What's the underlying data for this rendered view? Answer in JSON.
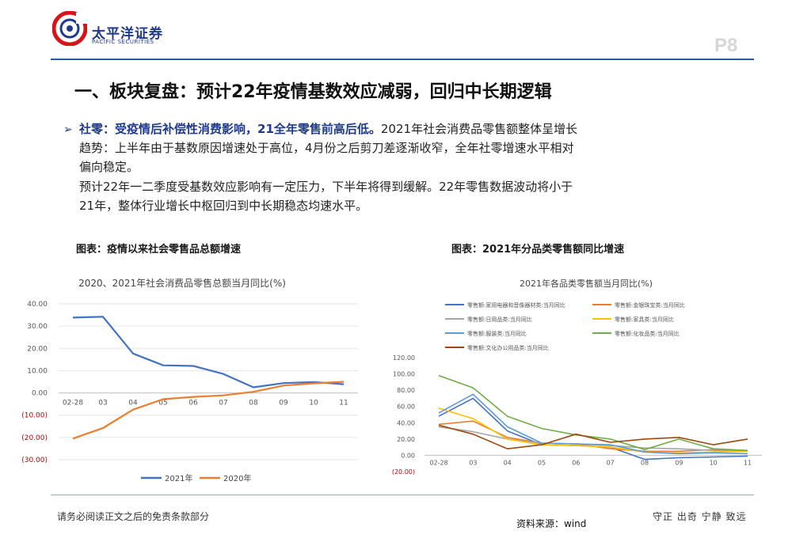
{
  "header": {
    "brand_cn": "太平洋证券",
    "brand_en": "PACIFIC SECURITIES",
    "page_number": "P8",
    "logo_color": "#d7141a",
    "accent_color": "#1f3a8c"
  },
  "title": "一、板块复盘：预计22年疫情基数效应减弱，回归中长期逻辑",
  "body": {
    "bullet": "➢",
    "highlight": "社零：受疫情后补偿性消费影响，21全年零售前高后低。",
    "line1_rest": "2021年社会消费品零售额整体呈增长",
    "line2": "趋势：上半年由于基数原因增速处于高位，4月份之后剪刀差逐渐收窄，全年社零增速水平相对",
    "line3": "偏向稳定。",
    "line4": "预计22年一二季度受基数效应影响有一定压力，下半年将得到缓解。22年零售数据波动将小于",
    "line5": "21年，整体行业增长中枢回归到中长期稳态均速水平。"
  },
  "captions": {
    "left": "图表：疫情以来社会零售品总额增速",
    "right": "图表：2021年分品类零售额同比增速"
  },
  "chart_data": [
    {
      "type": "line",
      "title": "2020、2021年社会消费品零售总额当月同比(%)",
      "categories": [
        "02-28",
        "03",
        "04",
        "05",
        "06",
        "07",
        "08",
        "09",
        "10",
        "11"
      ],
      "yticks": [
        "40.00",
        "30.00",
        "20.00",
        "10.00",
        "0.00",
        "(10.00)",
        "(20.00)",
        "(30.00)"
      ],
      "ylim": [
        -30,
        40
      ],
      "negative_tick_color": "#c00000",
      "series": [
        {
          "name": "2021年",
          "color": "#4472c4",
          "values": [
            33.8,
            34.2,
            17.7,
            12.4,
            12.1,
            8.5,
            2.5,
            4.4,
            4.9,
            3.9
          ]
        },
        {
          "name": "2020年",
          "color": "#ed7d31",
          "values": [
            -20.5,
            -15.8,
            -7.5,
            -2.8,
            -1.8,
            -1.1,
            0.5,
            3.3,
            4.3,
            5.0
          ]
        }
      ]
    },
    {
      "type": "line",
      "title": "2021年各品类零售额当月同比(%)",
      "categories": [
        "02-28",
        "03",
        "04",
        "05",
        "06",
        "07",
        "08",
        "09",
        "10",
        "11"
      ],
      "yticks": [
        "120.00",
        "100.00",
        "80.00",
        "60.00",
        "40.00",
        "20.00",
        "0.00",
        "(20.00)"
      ],
      "ylim": [
        -20,
        120
      ],
      "series": [
        {
          "name": "零售额:家用电器和音像器材类:当月同比",
          "color": "#4472c4",
          "values": [
            48,
            70,
            30,
            13,
            12,
            10,
            -5,
            -3,
            -2,
            -1
          ]
        },
        {
          "name": "零售额:金银珠宝类:当月同比",
          "color": "#ed7d31",
          "values": [
            38,
            42,
            22,
            15,
            14,
            8,
            5,
            5,
            7,
            6
          ]
        },
        {
          "name": "零售额:日用品类:当月同比",
          "color": "#a5a5a5",
          "values": [
            35,
            29,
            20,
            15,
            14,
            12,
            9,
            8,
            6,
            5
          ]
        },
        {
          "name": "零售额:家具类:当月同比",
          "color": "#ffc000",
          "values": [
            58,
            45,
            20,
            13,
            12,
            10,
            4,
            3,
            4,
            5
          ]
        },
        {
          "name": "零售额:服装类:当月同比",
          "color": "#5b9bd5",
          "values": [
            52,
            75,
            35,
            15,
            14,
            13,
            4,
            2,
            3,
            2
          ]
        },
        {
          "name": "零售额:化妆品类:当月同比",
          "color": "#70ad47",
          "values": [
            98,
            83,
            48,
            33,
            25,
            20,
            7,
            20,
            8,
            6
          ]
        },
        {
          "name": "零售额:文化办公用品类:当月同比",
          "color": "#9e480e",
          "values": [
            37,
            26,
            8,
            13,
            26,
            16,
            20,
            22,
            13,
            20
          ]
        }
      ]
    }
  ],
  "footer": {
    "disclaimer": "请务必阅读正文之后的免责条款部分",
    "source": "资料来源：wind",
    "motto": "守正 出奇 宁静 致远"
  }
}
